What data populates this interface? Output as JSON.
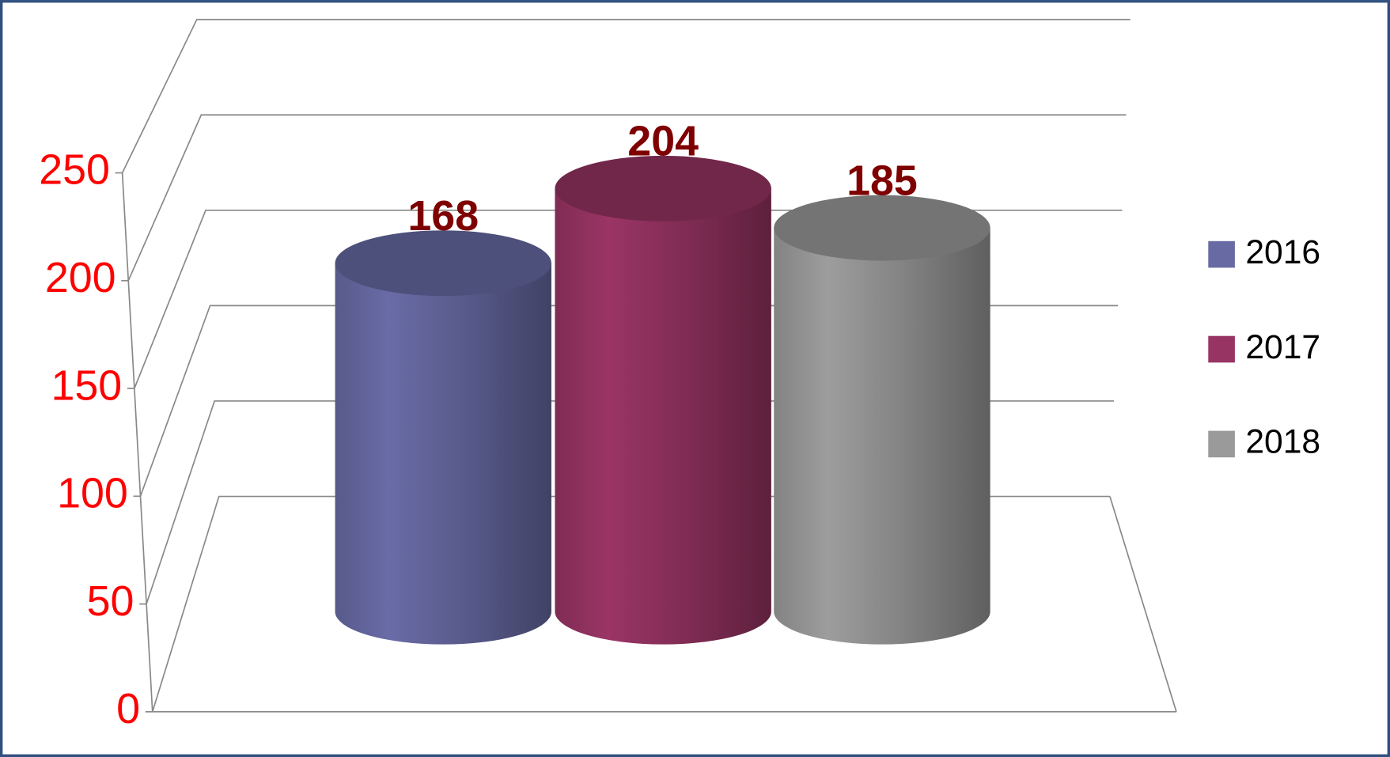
{
  "chart_data": {
    "type": "cylinder",
    "series": [
      {
        "name": "2016",
        "color": "#676aa3",
        "values": [
          168
        ]
      },
      {
        "name": "2017",
        "color": "#973463",
        "values": [
          204
        ]
      },
      {
        "name": "2018",
        "color": "#9a9a9a",
        "values": [
          185
        ]
      }
    ],
    "ylim": [
      0,
      250
    ],
    "yticks": [
      0,
      50,
      100,
      150,
      200,
      250
    ],
    "grid": true,
    "legend": "right"
  }
}
